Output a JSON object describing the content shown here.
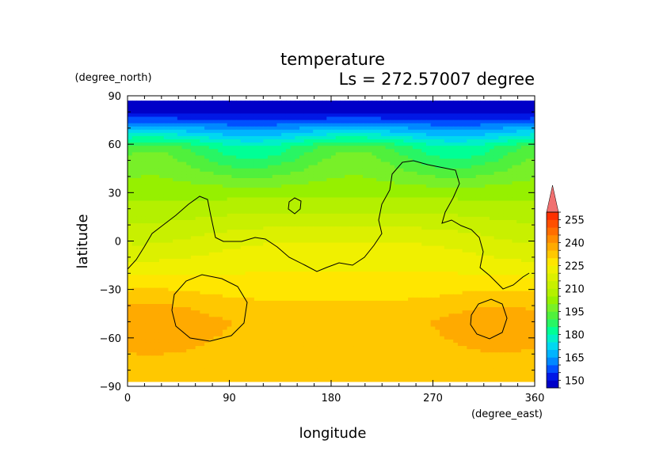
{
  "chart_data": {
    "type": "heatmap",
    "title": "temperature",
    "subtitle": "Ls = 272.57007 degree",
    "xlabel": "longitude",
    "ylabel": "latitude",
    "xunit": "(degree_east)",
    "yunit": "(degree_north)",
    "xlim": [
      0,
      360
    ],
    "ylim": [
      -90,
      90
    ],
    "xticks": [
      "0",
      "90",
      "180",
      "270",
      "360"
    ],
    "yticks": [
      "90",
      "60",
      "30",
      "0",
      "−30",
      "−60",
      "−90"
    ],
    "xtick_values": [
      0,
      90,
      180,
      270,
      360
    ],
    "ytick_values": [
      90,
      60,
      30,
      0,
      -30,
      -60,
      -90
    ],
    "data_lat_range": [
      -87,
      87
    ],
    "grid": false,
    "colorbar": {
      "levels": [
        145,
        150,
        155,
        160,
        165,
        170,
        175,
        180,
        185,
        190,
        195,
        200,
        205,
        210,
        215,
        220,
        225,
        230,
        235,
        240,
        245,
        250,
        255,
        260
      ],
      "labels": [
        "150",
        "165",
        "180",
        "195",
        "210",
        "225",
        "240",
        "255"
      ],
      "label_values": [
        150,
        165,
        180,
        195,
        210,
        225,
        240,
        255
      ],
      "colors": [
        "#0000c8",
        "#0018e6",
        "#0050ff",
        "#0088ff",
        "#00b4ff",
        "#00d8f0",
        "#00f0c8",
        "#00ff96",
        "#28f564",
        "#50f03c",
        "#78f028",
        "#96f000",
        "#b4f000",
        "#c8f000",
        "#dcf000",
        "#f0f000",
        "#ffe600",
        "#ffc800",
        "#ffaa00",
        "#ff8c00",
        "#ff6e00",
        "#ff5000",
        "#ff3000"
      ],
      "extend_top_color": "#f07070",
      "contour_color": "#000000"
    }
  }
}
